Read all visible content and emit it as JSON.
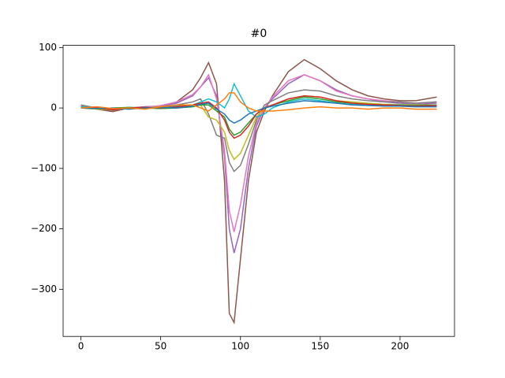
{
  "chart_data": {
    "type": "line",
    "title": "#0",
    "x": [
      0,
      10,
      20,
      30,
      40,
      50,
      60,
      70,
      75,
      80,
      85,
      90,
      93,
      96,
      100,
      105,
      110,
      115,
      120,
      130,
      140,
      150,
      160,
      170,
      180,
      190,
      200,
      210,
      223
    ],
    "series": [
      {
        "color": "#8c564b",
        "values": [
          3,
          -2,
          -6,
          0,
          2,
          3,
          10,
          30,
          50,
          75,
          40,
          -120,
          -340,
          -355,
          -250,
          -120,
          -40,
          -5,
          20,
          60,
          80,
          65,
          45,
          30,
          20,
          15,
          12,
          12,
          18
        ]
      },
      {
        "color": "#9467bd",
        "values": [
          2,
          0,
          -3,
          -1,
          2,
          3,
          8,
          20,
          35,
          50,
          20,
          -80,
          -200,
          -240,
          -200,
          -100,
          -30,
          0,
          15,
          40,
          55,
          45,
          30,
          20,
          15,
          10,
          8,
          6,
          8
        ]
      },
      {
        "color": "#e377c2",
        "values": [
          1,
          2,
          -2,
          0,
          1,
          4,
          10,
          22,
          35,
          55,
          15,
          -70,
          -170,
          -205,
          -160,
          -80,
          -25,
          0,
          18,
          45,
          55,
          45,
          28,
          20,
          15,
          12,
          10,
          8,
          10
        ]
      },
      {
        "color": "#7f7f7f",
        "values": [
          5,
          0,
          -4,
          0,
          0,
          2,
          5,
          10,
          15,
          -10,
          -45,
          -50,
          -90,
          -105,
          -95,
          -60,
          -20,
          5,
          12,
          25,
          30,
          28,
          20,
          15,
          12,
          10,
          10,
          8,
          10
        ]
      },
      {
        "color": "#bcbd22",
        "values": [
          0,
          -2,
          -3,
          0,
          0,
          2,
          2,
          5,
          5,
          -15,
          -20,
          -40,
          -70,
          -85,
          -75,
          -45,
          -15,
          0,
          5,
          15,
          20,
          18,
          12,
          10,
          8,
          6,
          6,
          5,
          5
        ]
      },
      {
        "color": "#17becf",
        "values": [
          2,
          0,
          -1,
          1,
          0,
          0,
          3,
          5,
          10,
          15,
          10,
          0,
          15,
          40,
          20,
          -5,
          -15,
          -10,
          0,
          10,
          15,
          12,
          8,
          6,
          6,
          5,
          5,
          4,
          4
        ]
      },
      {
        "color": "#2ca02c",
        "values": [
          0,
          -1,
          0,
          1,
          0,
          -1,
          0,
          2,
          5,
          5,
          -5,
          -15,
          -35,
          -45,
          -40,
          -25,
          -10,
          0,
          5,
          12,
          18,
          15,
          10,
          8,
          6,
          5,
          4,
          4,
          5
        ]
      },
      {
        "color": "#d62728",
        "values": [
          0,
          0,
          -3,
          0,
          1,
          0,
          2,
          5,
          8,
          10,
          0,
          -20,
          -40,
          -50,
          -45,
          -30,
          -10,
          0,
          5,
          15,
          20,
          18,
          12,
          8,
          6,
          5,
          4,
          3,
          4
        ]
      },
      {
        "color": "#1f77b4",
        "values": [
          0,
          -1,
          0,
          -2,
          0,
          1,
          0,
          3,
          6,
          8,
          -2,
          -10,
          -20,
          -25,
          -20,
          -10,
          -5,
          0,
          3,
          8,
          12,
          10,
          8,
          5,
          4,
          3,
          3,
          2,
          2
        ]
      },
      {
        "color": "#ff7f0e",
        "values": [
          0,
          2,
          -1,
          0,
          -2,
          2,
          5,
          5,
          0,
          -5,
          5,
          15,
          25,
          25,
          10,
          0,
          -5,
          -5,
          -5,
          -3,
          0,
          2,
          0,
          0,
          -2,
          0,
          0,
          -2,
          -2
        ]
      }
    ],
    "xlim": [
      -11.15,
      234.15
    ],
    "xticks": [
      0,
      50,
      100,
      150,
      200
    ],
    "ylim": [
      -378,
      103.6
    ],
    "yticks": [
      {
        "value": -300,
        "label": "−300"
      },
      {
        "value": -200,
        "label": "−200"
      },
      {
        "value": -100,
        "label": "−100"
      },
      0,
      100
    ]
  }
}
